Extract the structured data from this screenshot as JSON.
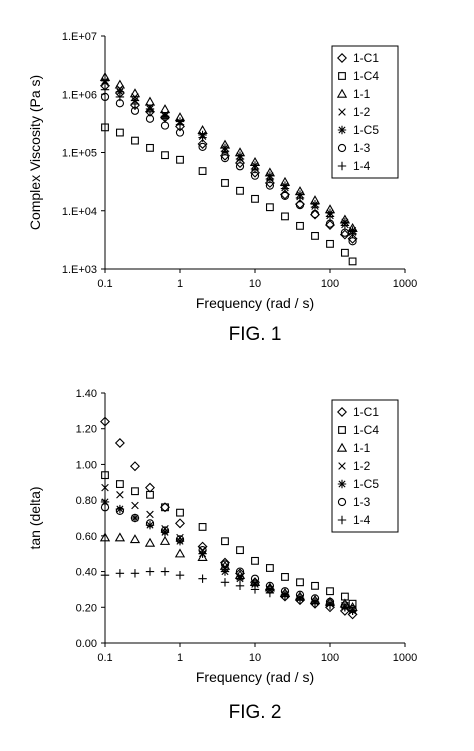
{
  "figures": [
    {
      "caption": "FIG. 1",
      "chart_data": {
        "type": "scatter",
        "title": "",
        "xlabel": "Frequency (rad / s)",
        "ylabel": "Complex Viscosity (Pa s)",
        "xscale": "log",
        "yscale": "log",
        "xlim": [
          0.1,
          1000
        ],
        "ylim": [
          1000,
          10000000
        ],
        "xticks": [
          0.1,
          1,
          10,
          100,
          1000
        ],
        "xtick_labels": [
          "0.1",
          "1",
          "10",
          "100",
          "1000"
        ],
        "yticks": [
          1000,
          10000,
          100000,
          1000000,
          10000000
        ],
        "ytick_labels": [
          "1.E+03",
          "1.E+04",
          "1.E+05",
          "1.E+06",
          "1.E+07"
        ],
        "grid": false,
        "legend": "top-right",
        "x": [
          0.1,
          0.158,
          0.251,
          0.398,
          0.631,
          1.0,
          2.0,
          3.98,
          6.31,
          10.0,
          15.8,
          25.1,
          39.8,
          63.1,
          100,
          158,
          200
        ],
        "series": [
          {
            "name": "1-C1",
            "marker": "diamond",
            "values": [
              1400000,
              1050000,
              650000,
              500000,
              400000,
              280000,
              140000,
              88000,
              66000,
              45000,
              30000,
              19000,
              13000,
              8600,
              5700,
              3900,
              3300
            ]
          },
          {
            "name": "1-C4",
            "marker": "square",
            "values": [
              270000,
              220000,
              160000,
              120000,
              90000,
              75000,
              48000,
              30000,
              22000,
              16000,
              11500,
              8000,
              5500,
              3700,
              2700,
              1900,
              1350
            ]
          },
          {
            "name": "1-1",
            "marker": "triangle",
            "values": [
              1950000,
              1450000,
              1030000,
              740000,
              550000,
              400000,
              240000,
              135000,
              100000,
              68000,
              45000,
              31000,
              21500,
              15000,
              10500,
              7000,
              5000
            ]
          },
          {
            "name": "1-2",
            "marker": "x",
            "values": [
              1600000,
              1250000,
              900000,
              600000,
              450000,
              330000,
              190000,
              110000,
              80000,
              55000,
              37000,
              25000,
              17500,
              12000,
              8300,
              5800,
              4300
            ]
          },
          {
            "name": "1-C5",
            "marker": "asterisk",
            "values": [
              1700000,
              1100000,
              780000,
              560000,
              420000,
              340000,
              200000,
              120000,
              88000,
              60000,
              40000,
              27000,
              19000,
              13000,
              9200,
              6400,
              4600
            ]
          },
          {
            "name": "1-3",
            "marker": "circle",
            "values": [
              900000,
              700000,
              520000,
              380000,
              290000,
              220000,
              125000,
              80000,
              58000,
              40000,
              27000,
              18000,
              12500,
              8800,
              6000,
              4200,
              3000
            ]
          },
          {
            "name": "1-4",
            "marker": "plus",
            "values": [
              1200000,
              900000,
              680000,
              500000,
              380000,
              300000,
              180000,
              105000,
              77000,
              52000,
              35000,
              24000,
              16500,
              11500,
              8000,
              5600,
              4000
            ]
          }
        ]
      }
    },
    {
      "caption": "FIG. 2",
      "chart_data": {
        "type": "scatter",
        "title": "",
        "xlabel": "Frequency (rad / s)",
        "ylabel": "tan (delta)",
        "xscale": "log",
        "yscale": "linear",
        "xlim": [
          0.1,
          1000
        ],
        "ylim": [
          0,
          1.4
        ],
        "xticks": [
          0.1,
          1,
          10,
          100,
          1000
        ],
        "xtick_labels": [
          "0.1",
          "1",
          "10",
          "100",
          "1000"
        ],
        "yticks": [
          0,
          0.2,
          0.4,
          0.6,
          0.8,
          1.0,
          1.2,
          1.4
        ],
        "ytick_labels": [
          "0.00",
          "0.20",
          "0.40",
          "0.60",
          "0.80",
          "1.00",
          "1.20",
          "1.40"
        ],
        "grid": false,
        "legend": "top-right",
        "x": [
          0.1,
          0.158,
          0.251,
          0.398,
          0.631,
          1.0,
          2.0,
          3.98,
          6.31,
          10.0,
          15.8,
          25.1,
          39.8,
          63.1,
          100,
          158,
          200
        ],
        "series": [
          {
            "name": "1-C1",
            "marker": "diamond",
            "values": [
              1.24,
              1.12,
              0.99,
              0.87,
              0.76,
              0.67,
              0.54,
              0.45,
              0.39,
              0.34,
              0.3,
              0.26,
              0.24,
              0.22,
              0.2,
              0.18,
              0.16
            ]
          },
          {
            "name": "1-C4",
            "marker": "square",
            "values": [
              0.94,
              0.89,
              0.85,
              0.83,
              0.76,
              0.73,
              0.65,
              0.57,
              0.52,
              0.46,
              0.42,
              0.37,
              0.34,
              0.32,
              0.29,
              0.26,
              0.22
            ]
          },
          {
            "name": "1-1",
            "marker": "triangle",
            "values": [
              0.59,
              0.59,
              0.58,
              0.56,
              0.57,
              0.5,
              0.48,
              0.43,
              0.38,
              0.34,
              0.31,
              0.28,
              0.26,
              0.24,
              0.23,
              0.22,
              0.2
            ]
          },
          {
            "name": "1-2",
            "marker": "x",
            "values": [
              0.87,
              0.83,
              0.77,
              0.72,
              0.64,
              0.59,
              0.52,
              0.42,
              0.37,
              0.33,
              0.3,
              0.27,
              0.25,
              0.23,
              0.22,
              0.21,
              0.19
            ]
          },
          {
            "name": "1-C5",
            "marker": "asterisk",
            "values": [
              0.79,
              0.75,
              0.7,
              0.66,
              0.62,
              0.57,
              0.5,
              0.4,
              0.36,
              0.33,
              0.3,
              0.27,
              0.25,
              0.23,
              0.22,
              0.2,
              0.18
            ]
          },
          {
            "name": "1-3",
            "marker": "circle",
            "values": [
              0.76,
              0.74,
              0.7,
              0.67,
              0.63,
              0.58,
              0.52,
              0.44,
              0.4,
              0.36,
              0.32,
              0.29,
              0.27,
              0.25,
              0.23,
              0.21,
              0.19
            ]
          },
          {
            "name": "1-4",
            "marker": "plus",
            "values": [
              0.38,
              0.39,
              0.39,
              0.4,
              0.4,
              0.38,
              0.36,
              0.34,
              0.32,
              0.3,
              0.28,
              0.26,
              0.24,
              0.22,
              0.21,
              0.2,
              0.18
            ]
          }
        ]
      }
    }
  ]
}
